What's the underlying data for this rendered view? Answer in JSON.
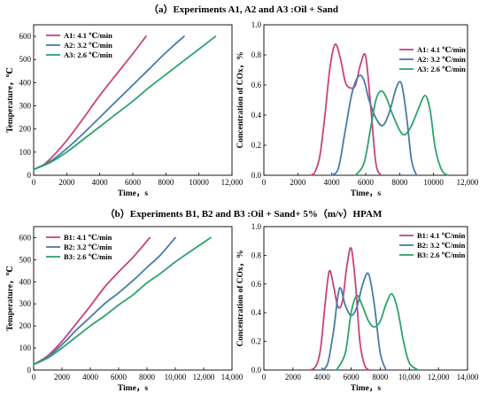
{
  "sections": {
    "a_title": "（a）Experiments A1, A2 and A3 :Oil + Sand",
    "b_title": "（b）Experiments B1, B2 and B3 :Oil + Sand+ 5%（m/v）HPAM"
  },
  "colors": {
    "s1": "#c8437a",
    "s2": "#4a7aa8",
    "s3": "#2ca36b"
  },
  "chart_data": [
    {
      "id": "a-temp",
      "type": "line",
      "xlabel": "Time，s",
      "ylabel": "Temperature，℃",
      "xlim": [
        0,
        12000
      ],
      "ylim": [
        0,
        650
      ],
      "xticks": [
        "0",
        "2000",
        "4000",
        "6000",
        "8000",
        "10000",
        "12,000"
      ],
      "xtick_values": [
        0,
        2000,
        4000,
        6000,
        8000,
        10000,
        12000
      ],
      "yticks": [
        "0",
        "100",
        "200",
        "300",
        "400",
        "500",
        "600"
      ],
      "ytick_values": [
        0,
        100,
        200,
        300,
        400,
        500,
        600
      ],
      "legend": "top-left",
      "series": [
        {
          "name": "A1: 4.1 ℃/min",
          "x": [
            0,
            600,
            1200,
            2000,
            3000,
            4000,
            5000,
            6000,
            6800
          ],
          "y": [
            25,
            45,
            85,
            150,
            245,
            345,
            435,
            525,
            600
          ]
        },
        {
          "name": "A2: 3.2 ℃/min",
          "x": [
            0,
            1000,
            2000,
            3000,
            4000,
            5000,
            6000,
            7000,
            8000,
            9100
          ],
          "y": [
            25,
            60,
            115,
            180,
            250,
            320,
            390,
            460,
            530,
            600
          ]
        },
        {
          "name": "A3: 2.6 ℃/min",
          "x": [
            0,
            1000,
            2000,
            3000,
            4000,
            5000,
            6000,
            7000,
            8000,
            9000,
            10000,
            11000
          ],
          "y": [
            25,
            55,
            100,
            155,
            210,
            265,
            320,
            380,
            435,
            490,
            545,
            600
          ]
        }
      ]
    },
    {
      "id": "a-cox",
      "type": "line",
      "xlabel": "Time，s",
      "ylabel": "Concentration of COx，%",
      "xlim": [
        0,
        12000
      ],
      "ylim": [
        0,
        1.0
      ],
      "xticks": [
        "0",
        "2000",
        "4000",
        "6000",
        "8000",
        "10000",
        "12,000"
      ],
      "xtick_values": [
        0,
        2000,
        4000,
        6000,
        8000,
        10000,
        12000
      ],
      "yticks": [
        "0.0",
        "0.2",
        "0.4",
        "0.6",
        "0.8",
        "1.0"
      ],
      "ytick_values": [
        0,
        0.2,
        0.4,
        0.6,
        0.8,
        1.0
      ],
      "legend": "top-right",
      "series": [
        {
          "name": "A1: 4.1 ℃/min",
          "x": [
            2700,
            3000,
            3300,
            3600,
            3900,
            4200,
            4500,
            4800,
            5100,
            5400,
            5700,
            6000,
            6300,
            6600,
            6900
          ],
          "y": [
            0,
            0.02,
            0.13,
            0.4,
            0.72,
            0.87,
            0.78,
            0.62,
            0.58,
            0.6,
            0.74,
            0.79,
            0.45,
            0.08,
            0
          ]
        },
        {
          "name": "A2: 3.2 ℃/min",
          "x": [
            4000,
            4400,
            4800,
            5200,
            5600,
            5900,
            6200,
            6600,
            7000,
            7400,
            7800,
            8100,
            8400,
            8700,
            9000
          ],
          "y": [
            0,
            0.05,
            0.3,
            0.55,
            0.66,
            0.63,
            0.5,
            0.38,
            0.33,
            0.42,
            0.58,
            0.61,
            0.4,
            0.1,
            0
          ]
        },
        {
          "name": "A3: 2.6 ℃/min",
          "x": [
            5400,
            5900,
            6300,
            6600,
            6900,
            7200,
            7600,
            8000,
            8300,
            8700,
            9100,
            9500,
            9800,
            10100,
            10500,
            10900
          ],
          "y": [
            0,
            0.08,
            0.32,
            0.5,
            0.56,
            0.52,
            0.4,
            0.3,
            0.27,
            0.33,
            0.44,
            0.53,
            0.43,
            0.18,
            0.03,
            0
          ]
        }
      ]
    },
    {
      "id": "b-temp",
      "type": "line",
      "xlabel": "Time，s",
      "ylabel": "Temperature，℃",
      "xlim": [
        0,
        14000
      ],
      "ylim": [
        0,
        650
      ],
      "xticks": [
        "0",
        "2000",
        "4000",
        "6000",
        "8000",
        "10,000",
        "12,000",
        "14,000"
      ],
      "xtick_values": [
        0,
        2000,
        4000,
        6000,
        8000,
        10000,
        12000,
        14000
      ],
      "yticks": [
        "0",
        "100",
        "200",
        "300",
        "400",
        "500",
        "600"
      ],
      "ytick_values": [
        0,
        100,
        200,
        300,
        400,
        500,
        600
      ],
      "legend": "top-left",
      "series": [
        {
          "name": "B1: 4.1 ℃/min",
          "x": [
            0,
            1000,
            2000,
            3000,
            4000,
            5000,
            6000,
            7000,
            8200
          ],
          "y": [
            25,
            65,
            130,
            210,
            290,
            375,
            445,
            510,
            600
          ]
        },
        {
          "name": "B2: 3.2 ℃/min",
          "x": [
            0,
            1000,
            2000,
            3000,
            4000,
            5000,
            6000,
            7000,
            8000,
            9000,
            10000
          ],
          "y": [
            25,
            60,
            115,
            180,
            240,
            300,
            350,
            405,
            465,
            525,
            600
          ]
        },
        {
          "name": "B3: 2.6 ℃/min",
          "x": [
            0,
            1000,
            2000,
            3000,
            4000,
            5000,
            6000,
            7000,
            8000,
            9000,
            10000,
            11000,
            12500
          ],
          "y": [
            25,
            55,
            100,
            150,
            200,
            245,
            295,
            340,
            395,
            440,
            490,
            535,
            600
          ]
        }
      ]
    },
    {
      "id": "b-cox",
      "type": "line",
      "xlabel": "Time，s",
      "ylabel": "Concentration of COx，%",
      "xlim": [
        0,
        14000
      ],
      "ylim": [
        0,
        1.0
      ],
      "xticks": [
        "0",
        "2000",
        "4000",
        "6000",
        "8000",
        "10,000",
        "12,000",
        "14,000"
      ],
      "xtick_values": [
        0,
        2000,
        4000,
        6000,
        8000,
        10000,
        12000,
        14000
      ],
      "yticks": [
        "0.0",
        "0.2",
        "0.4",
        "0.6",
        "0.8",
        "1.0"
      ],
      "ytick_values": [
        0,
        0.2,
        0.4,
        0.6,
        0.8,
        1.0
      ],
      "legend": "top-right",
      "series": [
        {
          "name": "B1: 4.1 ℃/min",
          "x": [
            3200,
            3600,
            3900,
            4200,
            4500,
            4800,
            5100,
            5400,
            5700,
            6000,
            6300,
            6600,
            6900,
            7200
          ],
          "y": [
            0,
            0.03,
            0.15,
            0.45,
            0.69,
            0.58,
            0.44,
            0.48,
            0.72,
            0.85,
            0.6,
            0.2,
            0.04,
            0
          ]
        },
        {
          "name": "B2: 3.2 ℃/min",
          "x": [
            4000,
            4400,
            4800,
            5200,
            5600,
            6000,
            6400,
            6800,
            7200,
            7600,
            8000,
            8400
          ],
          "y": [
            0,
            0.05,
            0.28,
            0.57,
            0.45,
            0.38,
            0.44,
            0.6,
            0.67,
            0.45,
            0.12,
            0
          ]
        },
        {
          "name": "B3: 2.6 ℃/min",
          "x": [
            5000,
            5600,
            6000,
            6400,
            6800,
            7200,
            7600,
            8000,
            8400,
            8800,
            9200,
            9600,
            10000,
            10600
          ],
          "y": [
            0,
            0.12,
            0.4,
            0.52,
            0.44,
            0.34,
            0.3,
            0.34,
            0.46,
            0.53,
            0.42,
            0.2,
            0.05,
            0
          ]
        }
      ]
    }
  ]
}
